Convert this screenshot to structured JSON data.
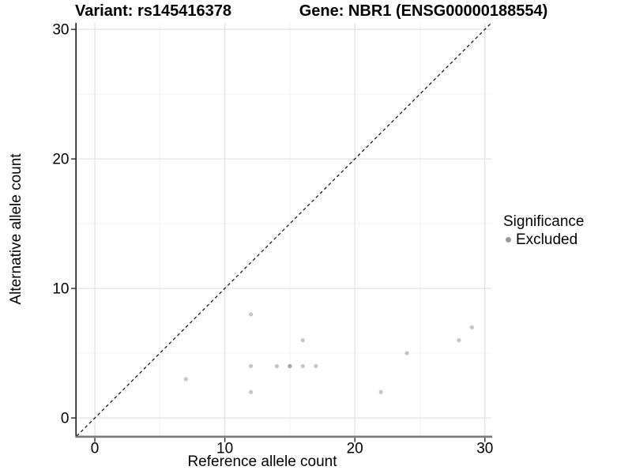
{
  "chart_data": {
    "type": "scatter",
    "title_left": "Variant: rs145416378",
    "title_right": "Gene: NBR1 (ENSG00000188554)",
    "xlabel": "Reference allele count",
    "ylabel": "Alternative allele count",
    "xlim": [
      -1.4,
      30.5
    ],
    "ylim": [
      -1.4,
      30.5
    ],
    "x_ticks": [
      0,
      10,
      20,
      30
    ],
    "y_ticks": [
      0,
      10,
      20,
      30
    ],
    "grid": {
      "major": [
        0,
        10,
        20,
        30
      ],
      "minor": [
        5,
        15,
        25
      ]
    },
    "series": [
      {
        "name": "Excluded",
        "points": [
          [
            7,
            3
          ],
          [
            12,
            2
          ],
          [
            12,
            4
          ],
          [
            12,
            8
          ],
          [
            14,
            4
          ],
          [
            15,
            4
          ],
          [
            15,
            4
          ],
          [
            16,
            4
          ],
          [
            16,
            6
          ],
          [
            17,
            4
          ],
          [
            22,
            2
          ],
          [
            24,
            5
          ],
          [
            28,
            6
          ],
          [
            29,
            7
          ]
        ]
      }
    ],
    "reference_line": {
      "style": "dashed",
      "equation": "y = x"
    },
    "legend": {
      "title": "Significance",
      "position": "right",
      "items": [
        {
          "label": "Excluded",
          "color": "#9a9a9a"
        }
      ]
    },
    "colors": {
      "point": "#7f7f7f",
      "point_alpha": 0.45,
      "grid_major": "#e3e3e3",
      "grid_minor": "#f1f1f1",
      "axis_line_y": "#1a1a1a",
      "axis_line_x": "#7a7a7a",
      "tick": "#2b2b2b",
      "reference_line": "#111111",
      "text": "#000000"
    }
  }
}
